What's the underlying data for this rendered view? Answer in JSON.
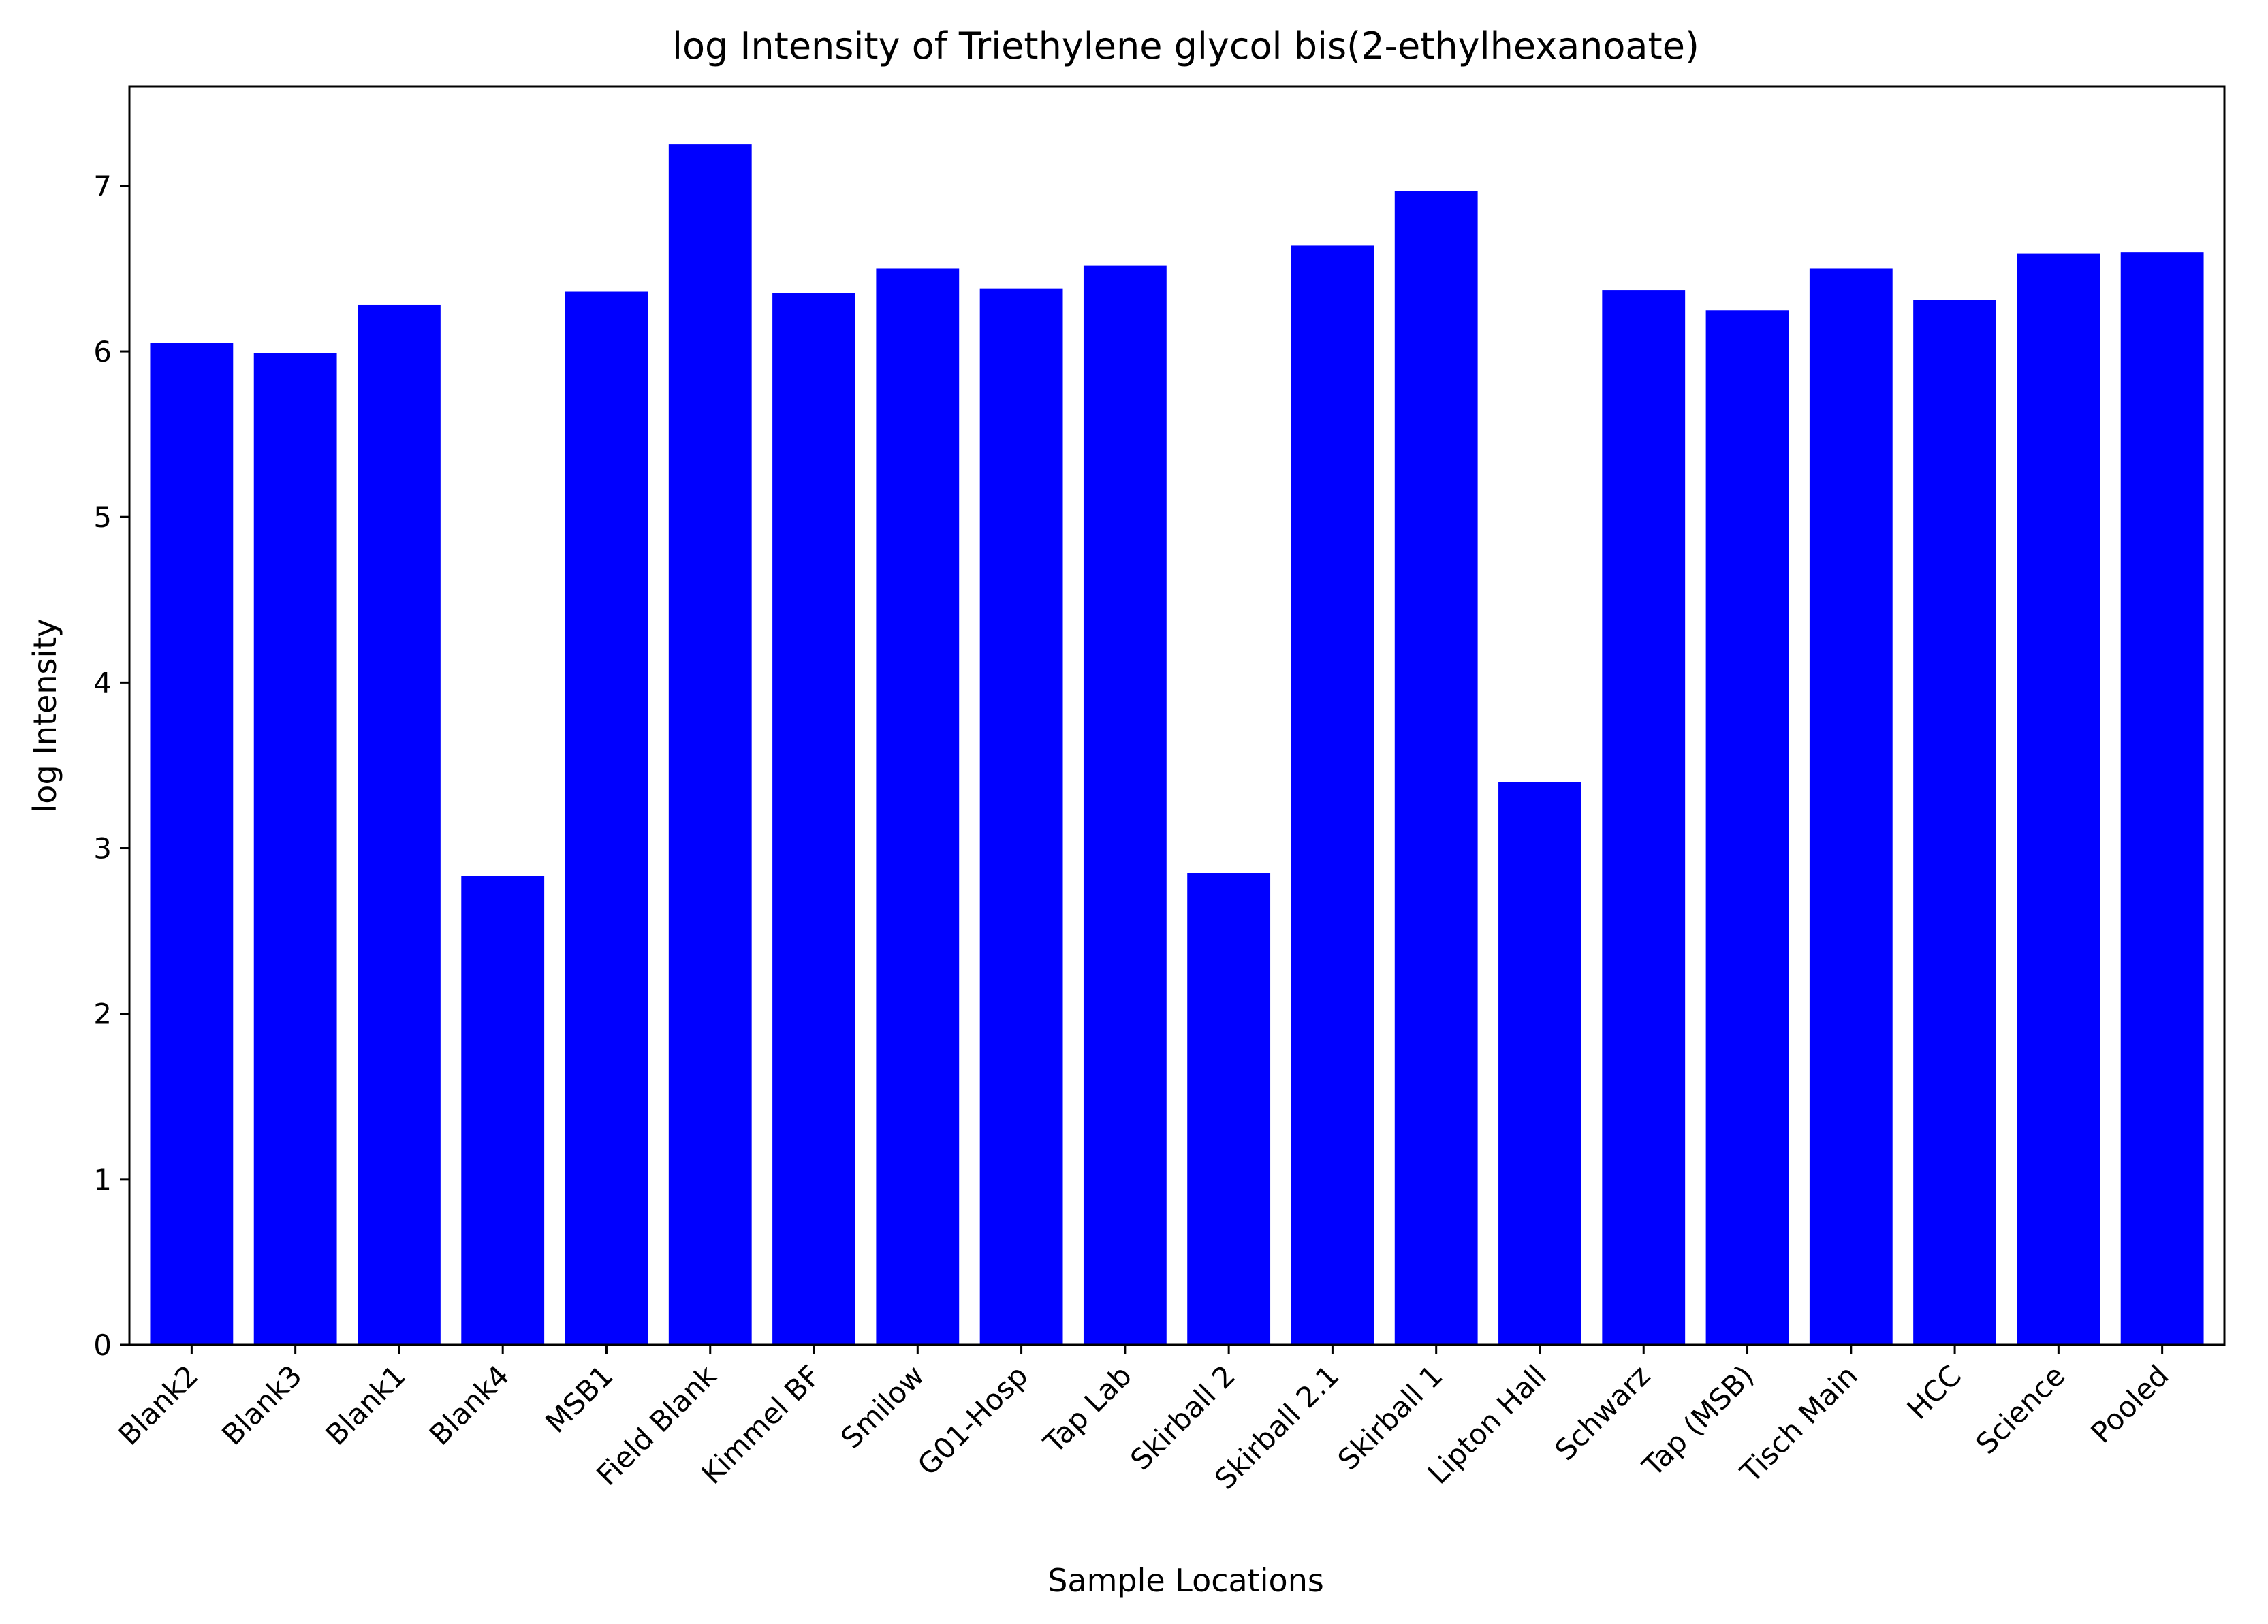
{
  "chart_data": {
    "type": "bar",
    "title": "log Intensity of Triethylene glycol bis(2-ethylhexanoate)",
    "xlabel": "Sample Locations",
    "ylabel": "log Intensity",
    "ylim": [
      0,
      7.6
    ],
    "yticks": [
      0,
      1,
      2,
      3,
      4,
      5,
      6,
      7
    ],
    "grid": false,
    "bar_color": "#0000ff",
    "categories": [
      "Blank2",
      "Blank3",
      "Blank1",
      "Blank4",
      "MSB1",
      "Field Blank",
      "Kimmel BF",
      "Smilow",
      "G01-Hosp",
      "Tap Lab",
      "Skirball 2",
      "Skirball 2.1",
      "Skirball 1",
      "Lipton Hall",
      "Schwarz",
      "Tap (MSB)",
      "Tisch Main",
      "HCC",
      "Science",
      "Pooled"
    ],
    "values": [
      6.05,
      5.99,
      6.28,
      2.83,
      6.36,
      7.25,
      6.35,
      6.5,
      6.38,
      6.52,
      2.85,
      6.64,
      6.97,
      3.4,
      6.37,
      6.25,
      6.5,
      6.31,
      6.59,
      6.6
    ]
  }
}
